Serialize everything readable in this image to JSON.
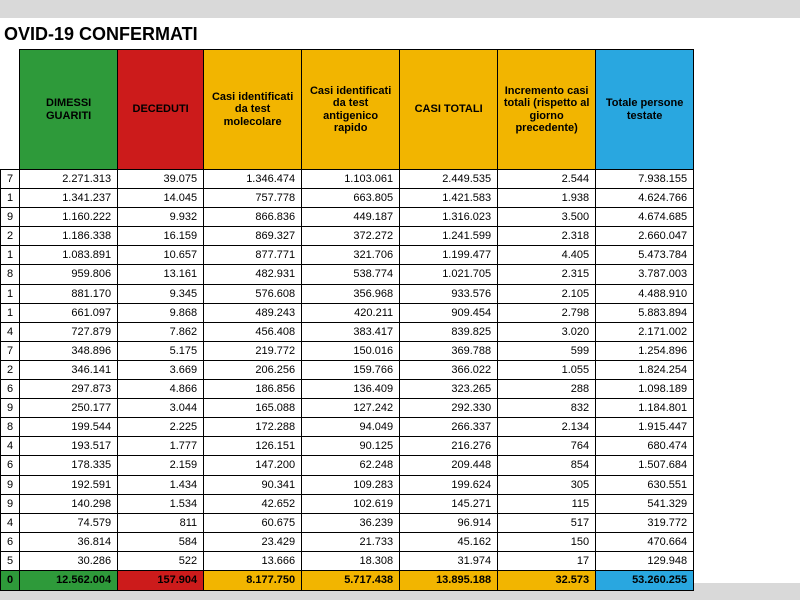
{
  "title": "OVID-19 CONFERMATI",
  "table": {
    "columns": [
      {
        "key": "stub",
        "label": ""
      },
      {
        "key": "dimessi",
        "label": "DIMESSI\nGUARITI",
        "header_bg": "#2e9a3a",
        "header_fg": "#000000"
      },
      {
        "key": "deceduti",
        "label": "DECEDUTI",
        "header_bg": "#cc1b1b",
        "header_fg": "#000000"
      },
      {
        "key": "mol",
        "label": "Casi identificati da test molecolare",
        "header_bg": "#f2b500",
        "header_fg": "#000000"
      },
      {
        "key": "ant",
        "label": "Casi identificati da test antigenico rapido",
        "header_bg": "#f2b500",
        "header_fg": "#000000"
      },
      {
        "key": "tot",
        "label": "CASI TOTALI",
        "header_bg": "#f2b500",
        "header_fg": "#000000"
      },
      {
        "key": "inc",
        "label": "Incremento casi totali (rispetto al giorno precedente)",
        "header_bg": "#f2b500",
        "header_fg": "#000000"
      },
      {
        "key": "pers",
        "label": "Totale persone testate",
        "header_bg": "#29a7e0",
        "header_fg": "#000000"
      }
    ],
    "stubs": [
      "7",
      "1",
      "9",
      "2",
      "1",
      "8",
      "1",
      "1",
      "4",
      "7",
      "2",
      "6",
      "9",
      "8",
      "4",
      "6",
      "9",
      "9",
      "4",
      "6",
      "5",
      "0"
    ],
    "rows": [
      [
        "2.271.313",
        "39.075",
        "1.346.474",
        "1.103.061",
        "2.449.535",
        "2.544",
        "7.938.155"
      ],
      [
        "1.341.237",
        "14.045",
        "757.778",
        "663.805",
        "1.421.583",
        "1.938",
        "4.624.766"
      ],
      [
        "1.160.222",
        "9.932",
        "866.836",
        "449.187",
        "1.316.023",
        "3.500",
        "4.674.685"
      ],
      [
        "1.186.338",
        "16.159",
        "869.327",
        "372.272",
        "1.241.599",
        "2.318",
        "2.660.047"
      ],
      [
        "1.083.891",
        "10.657",
        "877.771",
        "321.706",
        "1.199.477",
        "4.405",
        "5.473.784"
      ],
      [
        "959.806",
        "13.161",
        "482.931",
        "538.774",
        "1.021.705",
        "2.315",
        "3.787.003"
      ],
      [
        "881.170",
        "9.345",
        "576.608",
        "356.968",
        "933.576",
        "2.105",
        "4.488.910"
      ],
      [
        "661.097",
        "9.868",
        "489.243",
        "420.211",
        "909.454",
        "2.798",
        "5.883.894"
      ],
      [
        "727.879",
        "7.862",
        "456.408",
        "383.417",
        "839.825",
        "3.020",
        "2.171.002"
      ],
      [
        "348.896",
        "5.175",
        "219.772",
        "150.016",
        "369.788",
        "599",
        "1.254.896"
      ],
      [
        "346.141",
        "3.669",
        "206.256",
        "159.766",
        "366.022",
        "1.055",
        "1.824.254"
      ],
      [
        "297.873",
        "4.866",
        "186.856",
        "136.409",
        "323.265",
        "288",
        "1.098.189"
      ],
      [
        "250.177",
        "3.044",
        "165.088",
        "127.242",
        "292.330",
        "832",
        "1.184.801"
      ],
      [
        "199.544",
        "2.225",
        "172.288",
        "94.049",
        "266.337",
        "2.134",
        "1.915.447"
      ],
      [
        "193.517",
        "1.777",
        "126.151",
        "90.125",
        "216.276",
        "764",
        "680.474"
      ],
      [
        "178.335",
        "2.159",
        "147.200",
        "62.248",
        "209.448",
        "854",
        "1.507.684"
      ],
      [
        "192.591",
        "1.434",
        "90.341",
        "109.283",
        "199.624",
        "305",
        "630.551"
      ],
      [
        "140.298",
        "1.534",
        "42.652",
        "102.619",
        "145.271",
        "115",
        "541.329"
      ],
      [
        "74.579",
        "811",
        "60.675",
        "36.239",
        "96.914",
        "517",
        "319.772"
      ],
      [
        "36.814",
        "584",
        "23.429",
        "21.733",
        "45.162",
        "150",
        "470.664"
      ],
      [
        "30.286",
        "522",
        "13.666",
        "18.308",
        "31.974",
        "17",
        "129.948"
      ]
    ],
    "totals": {
      "stub": "0",
      "cells": [
        "12.562.004",
        "157.904",
        "8.177.750",
        "5.717.438",
        "13.895.188",
        "32.573",
        "53.260.255"
      ],
      "cell_bg": [
        "#2e9a3a",
        "#cc1b1b",
        "#f2b500",
        "#f2b500",
        "#f2b500",
        "#f2b500",
        "#29a7e0"
      ]
    },
    "row_bg": "#ffffff",
    "border_color": "#000000"
  }
}
